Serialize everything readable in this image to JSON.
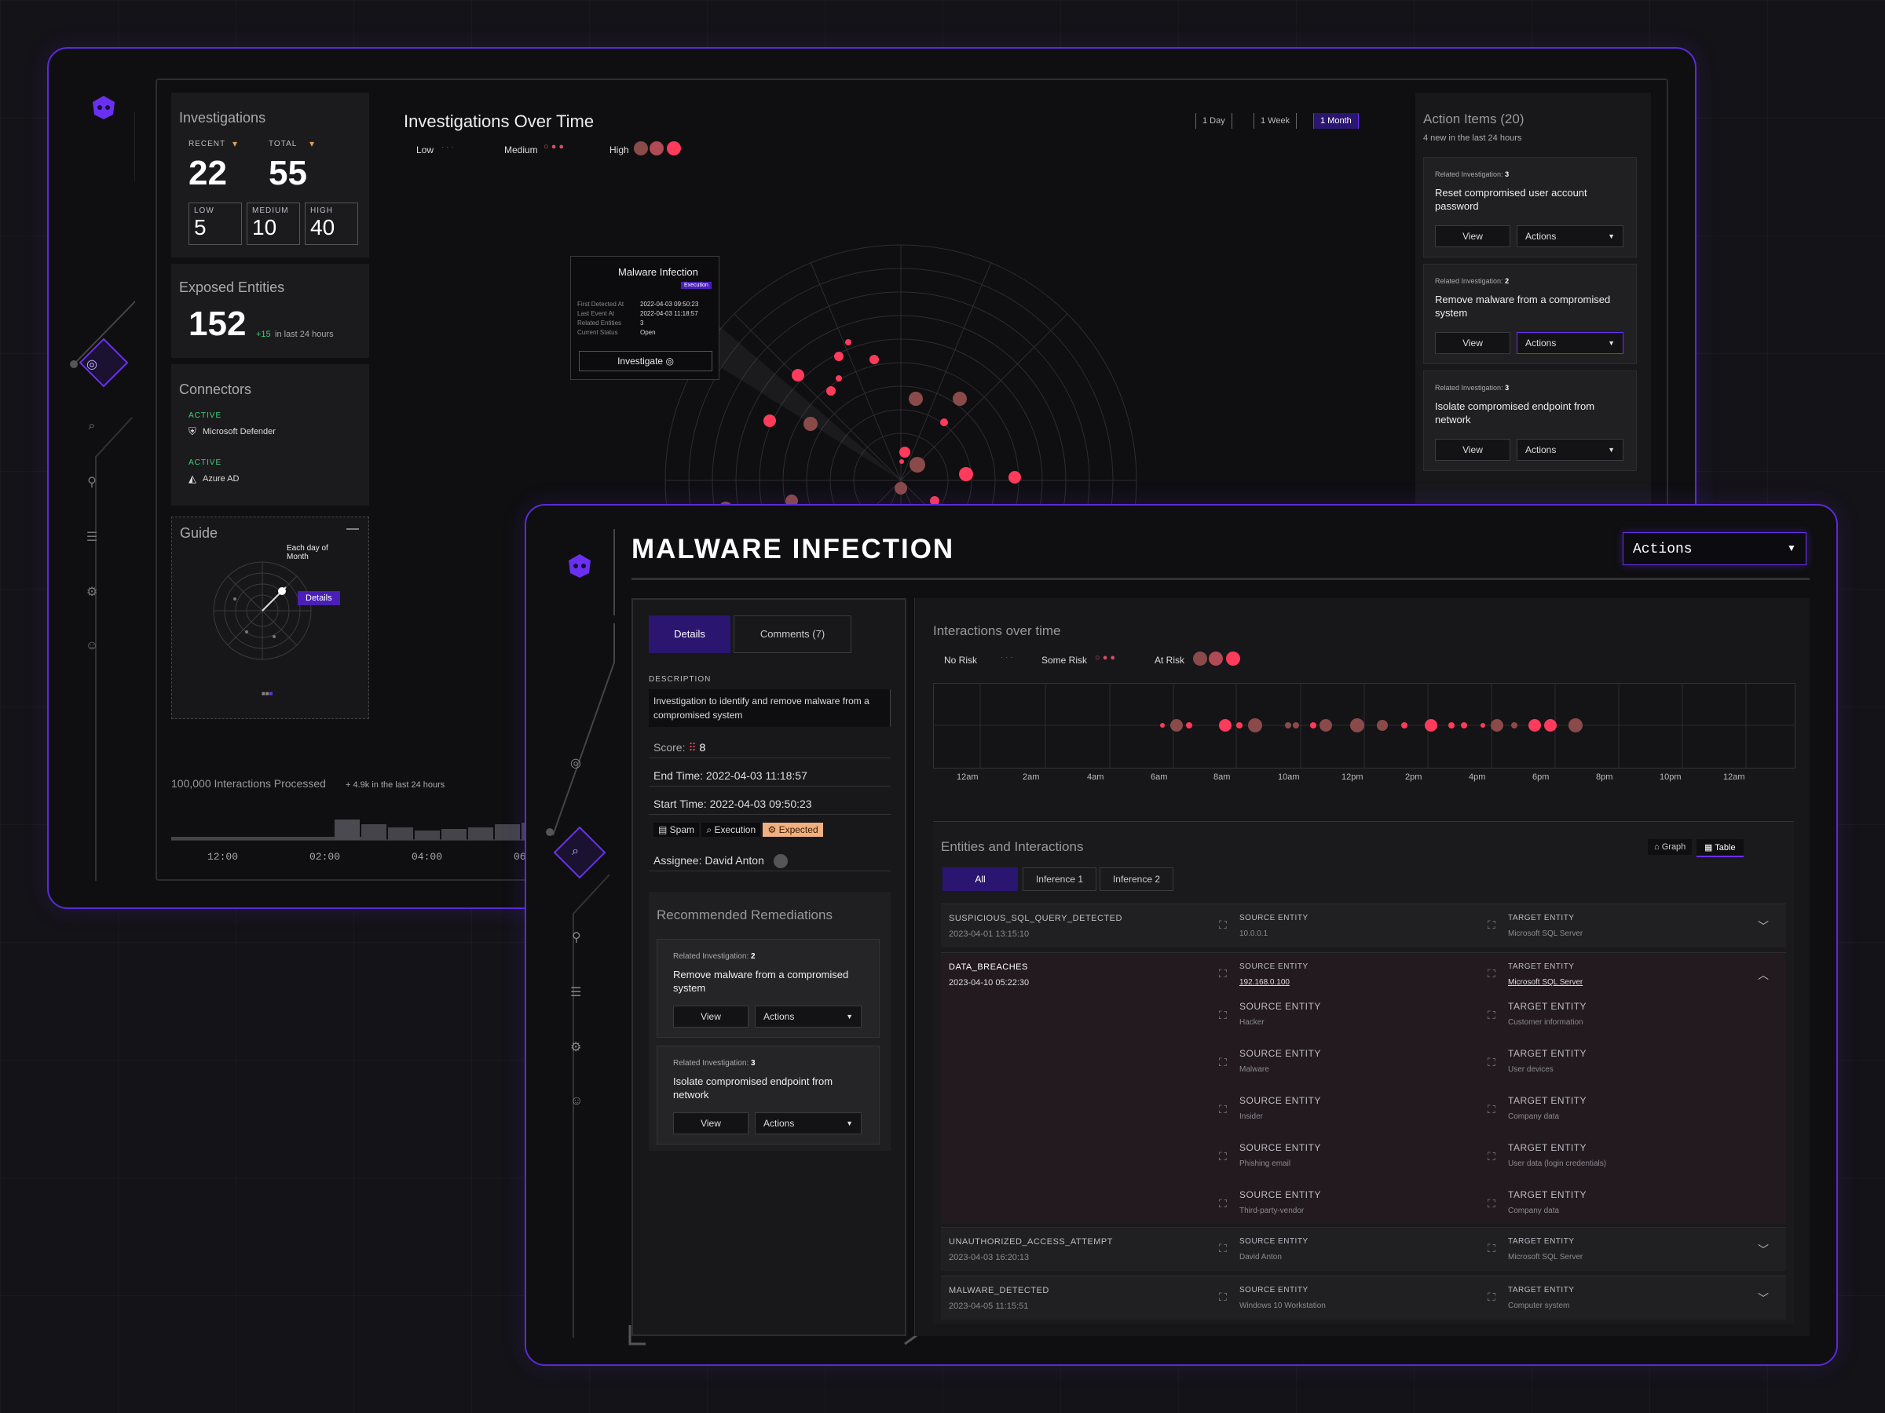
{
  "dashboard": {
    "investigations": {
      "title": "Investigations",
      "recent_label": "RECENT",
      "total_label": "TOTAL",
      "recent": "22",
      "total": "55",
      "low_label": "LOW",
      "low": "5",
      "medium_label": "MEDIUM",
      "medium": "10",
      "high_label": "HIGH",
      "high": "40"
    },
    "exposed": {
      "title": "Exposed Entities",
      "value": "152",
      "delta": "+15",
      "delta_text": "in last 24 hours"
    },
    "connectors": {
      "title": "Connectors",
      "items": [
        {
          "status": "ACTIVE",
          "name": "Microsoft Defender"
        },
        {
          "status": "ACTIVE",
          "name": "Azure AD"
        }
      ]
    },
    "guide": {
      "title": "Guide",
      "minimize": "—",
      "hint": "Each day of Month",
      "details": "Details"
    },
    "processed": {
      "label": "100,000 Interactions Processed",
      "delta": "+ 4.9k in the last 24 hours",
      "times": [
        "12:00",
        "02:00",
        "04:00",
        "06"
      ]
    },
    "chart": {
      "title": "Investigations Over Time",
      "legend": [
        "Low",
        "Medium",
        "High"
      ],
      "ranges": [
        "1 Day",
        "1 Week",
        "1 Month"
      ],
      "active_range": "1 Month"
    },
    "popup": {
      "title": "Malware Infection",
      "tag": "Execution",
      "fields": [
        [
          "First Detected At",
          "2022-04-03 09:50:23"
        ],
        [
          "Last Event At",
          "2022-04-03 11:18:57"
        ],
        [
          "Related Entities",
          "3"
        ],
        [
          "Current Status",
          "Open"
        ]
      ],
      "button": "Investigate"
    },
    "actions": {
      "title": "Action Items (20)",
      "subtitle": "4 new in the last 24 hours",
      "items": [
        {
          "rel": "Related Investigation:",
          "num": "3",
          "text": "Reset compromised user account password"
        },
        {
          "rel": "Related Investigation:",
          "num": "2",
          "text": "Remove malware from a compromised system"
        },
        {
          "rel": "Related Investigation:",
          "num": "3",
          "text": "Isolate compromised endpoint from network"
        }
      ],
      "view": "View",
      "actions": "Actions"
    }
  },
  "detail": {
    "title": "MALWARE INFECTION",
    "actions": "Actions",
    "tabs": [
      "Details",
      "Comments (7)"
    ],
    "description_label": "DESCRIPTION",
    "description": "Investigation to identify and remove malware from a compromised system",
    "score_label": "Score:",
    "score": "8",
    "end_time": "End Time: 2022-04-03 11:18:57",
    "start_time": "Start Time: 2022-04-03 09:50:23",
    "tags": [
      "Spam",
      "Execution",
      "Expected"
    ],
    "assignee": "Assignee: David Anton",
    "remediations": {
      "title": "Recommended Remediations",
      "items": [
        {
          "rel": "Related Investigation:",
          "num": "2",
          "text": "Remove malware from a compromised system"
        },
        {
          "rel": "Related Investigation:",
          "num": "3",
          "text": "Isolate compromised endpoint from network"
        }
      ]
    },
    "interactions": {
      "title": "Interactions over time",
      "legend": [
        "No Risk",
        "Some Risk",
        "At Risk"
      ],
      "hours": [
        "12am",
        "2am",
        "4am",
        "6am",
        "8am",
        "10am",
        "12pm",
        "2pm",
        "4pm",
        "6pm",
        "8pm",
        "10pm",
        "12am"
      ]
    },
    "entities": {
      "title": "Entities and Interactions",
      "views": [
        "Graph",
        "Table"
      ],
      "filters": [
        "All",
        "Inference 1",
        "Inference 2"
      ],
      "src_label": "SOURCE ENTITY",
      "tgt_label": "TARGET ENTITY",
      "rows": [
        {
          "name": "SUSPICIOUS_SQL_QUERY_DETECTED",
          "date": "2023-04-01 13:15:10",
          "src": "10.0.0.1",
          "tgt": "Microsoft SQL Server"
        },
        {
          "name": "DATA_BREACHES",
          "date": "2023-04-10 05:22:30",
          "src": "192.168.0.100",
          "tgt": "Microsoft SQL Server"
        },
        {
          "name": "UNAUTHORIZED_ACCESS_ATTEMPT",
          "date": "2023-04-03 16:20:13",
          "src": "David Anton",
          "tgt": "Microsoft SQL Server"
        },
        {
          "name": "MALWARE_DETECTED",
          "date": "2023-04-05 11:15:51",
          "src": "Windows 10 Workstation",
          "tgt": "Computer system"
        }
      ],
      "expanded": [
        [
          "Hacker",
          "Customer information"
        ],
        [
          "Malware",
          "User devices"
        ],
        [
          "Insider",
          "Company data"
        ],
        [
          "Phishing email",
          "User data (login credentials)"
        ],
        [
          "Third-party-vendor",
          "Company data"
        ]
      ]
    }
  }
}
